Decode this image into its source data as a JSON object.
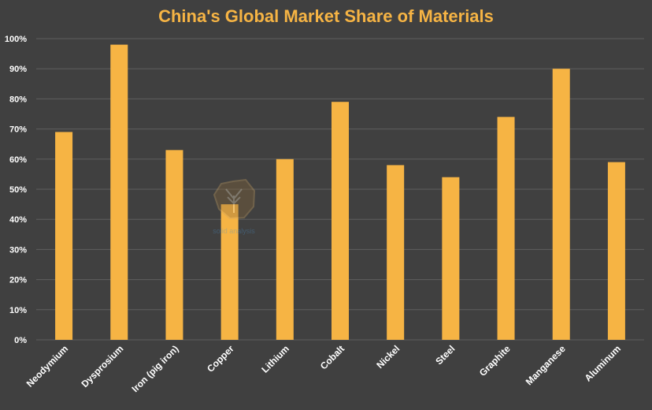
{
  "chart_data": {
    "type": "bar",
    "title": "China's Global Market Share of Materials",
    "xlabel": "",
    "ylabel": "",
    "categories": [
      "Neodymium",
      "Dysprosium",
      "Iron (pig iron)",
      "Copper",
      "Lithium",
      "Cobalt",
      "Nickel",
      "Steel",
      "Graphite",
      "Manganese",
      "Aluminum"
    ],
    "values": [
      69,
      98,
      63,
      45,
      60,
      79,
      58,
      54,
      74,
      90,
      59
    ],
    "ylim": [
      0,
      100
    ],
    "y_ticks": [
      "0%",
      "10%",
      "20%",
      "30%",
      "40%",
      "50%",
      "60%",
      "70%",
      "80%",
      "90%",
      "100%"
    ],
    "grid": true,
    "legend": "none",
    "colors": {
      "bar": "#F6B444",
      "title": "#F6B444",
      "background": "#404040",
      "grid": "#5E5E5E",
      "text": "#FFFFFF"
    },
    "watermark_icon": "tree-logo-icon",
    "watermark_text": "solid analysis"
  }
}
